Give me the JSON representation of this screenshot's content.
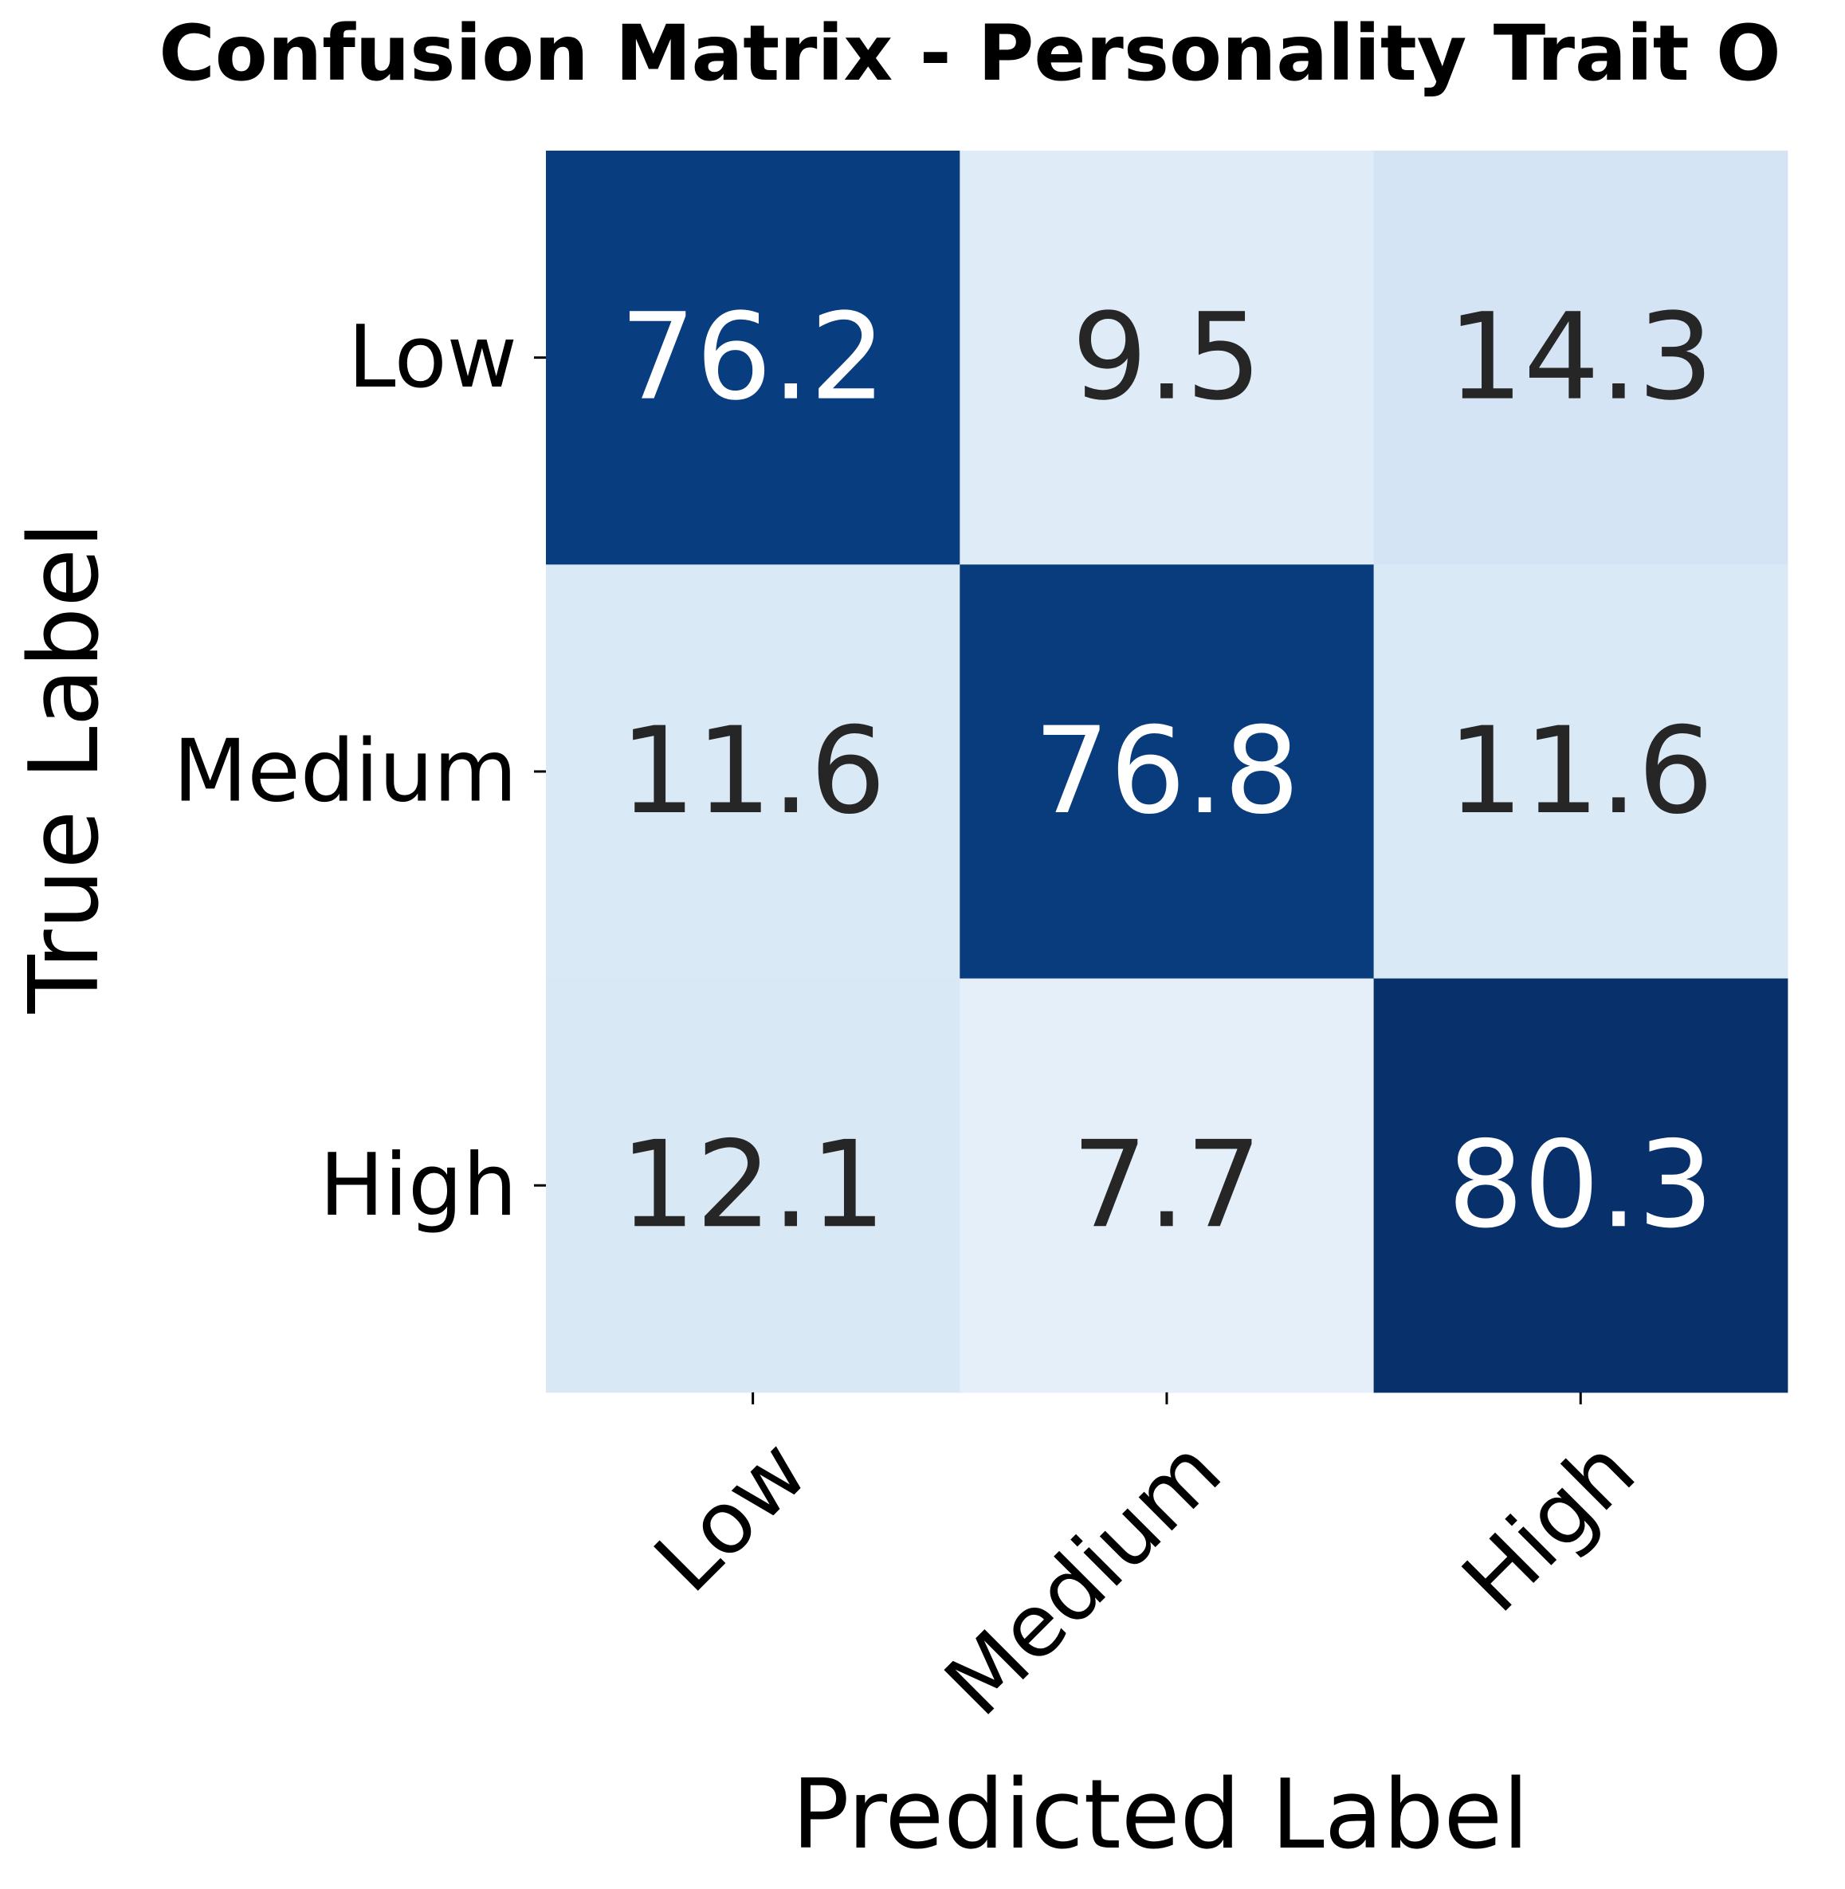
{
  "chart_data": {
    "type": "heatmap",
    "title": "Confusion Matrix - Personality Trait O",
    "xlabel": "Predicted Label",
    "ylabel": "True Label",
    "x_categories": [
      "Low",
      "Medium",
      "High"
    ],
    "y_categories": [
      "Low",
      "Medium",
      "High"
    ],
    "values": [
      [
        76.2,
        9.5,
        14.3
      ],
      [
        11.6,
        76.8,
        11.6
      ],
      [
        12.1,
        7.7,
        80.3
      ]
    ],
    "value_format": "0.1f",
    "colormap": "Blues",
    "vmin": 0,
    "vmax": 80.3,
    "colorbar": false,
    "grid": false
  }
}
